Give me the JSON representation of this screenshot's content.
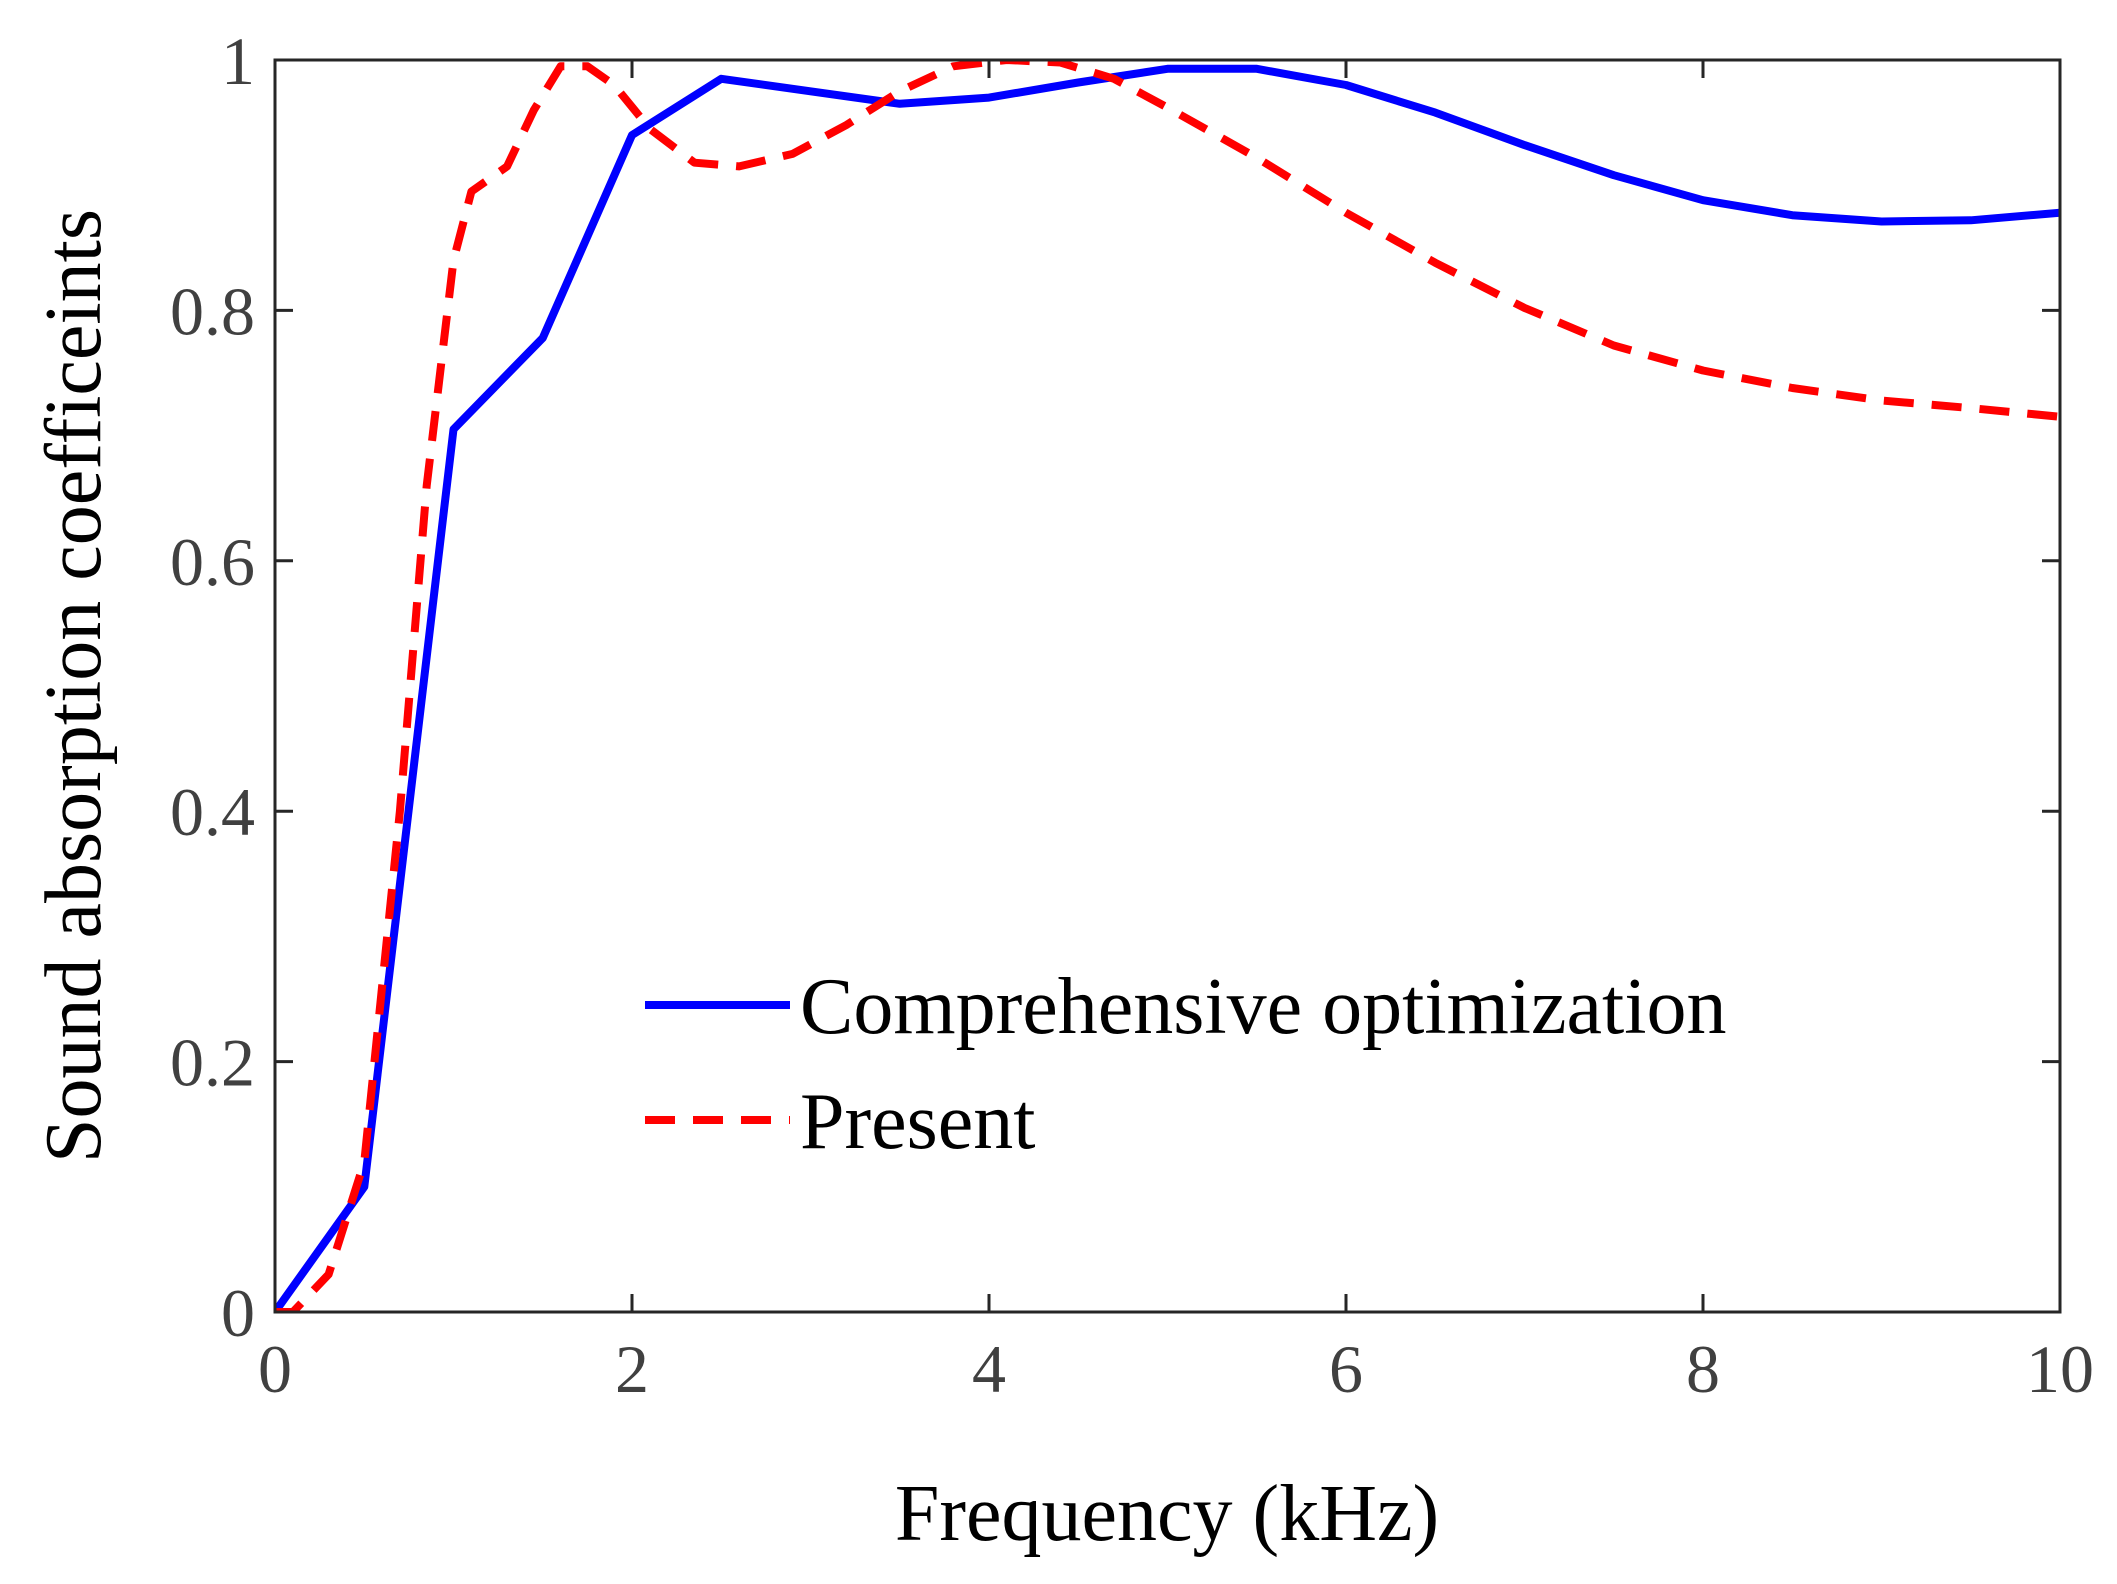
{
  "chart_data": {
    "type": "line",
    "title": "",
    "xlabel": "Frequency (kHz)",
    "ylabel": "Sound absorption coefficeints",
    "xlim": [
      0,
      10
    ],
    "ylim": [
      0,
      1
    ],
    "xticks": [
      0,
      2,
      4,
      6,
      8,
      10
    ],
    "xtick_labels": [
      "0",
      "2",
      "4",
      "6",
      "8",
      "10"
    ],
    "yticks": [
      0,
      0.2,
      0.4,
      0.6,
      0.8,
      1
    ],
    "ytick_labels": [
      "0",
      "0.2",
      "0.4",
      "0.6",
      "0.8",
      "1"
    ],
    "grid": false,
    "legend_position": "lower-right",
    "series": [
      {
        "name": "Comprehensive optimization",
        "color": "#0000ff",
        "style": "solid",
        "x": [
          0,
          0.5,
          1.0,
          1.5,
          2.0,
          2.5,
          3.0,
          3.5,
          4.0,
          4.5,
          5.0,
          5.5,
          6.0,
          6.5,
          7.0,
          7.5,
          8.0,
          8.5,
          9.0,
          9.5,
          10.0
        ],
        "y": [
          0,
          0.1,
          0.705,
          0.778,
          0.94,
          0.985,
          0.975,
          0.965,
          0.97,
          0.982,
          0.993,
          0.993,
          0.98,
          0.958,
          0.932,
          0.908,
          0.888,
          0.876,
          0.871,
          0.872,
          0.878
        ]
      },
      {
        "name": "Present",
        "color": "#ff0000",
        "style": "dashed",
        "x": [
          0,
          0.1,
          0.3,
          0.5,
          0.7,
          0.85,
          1.0,
          1.1,
          1.3,
          1.45,
          1.6,
          1.75,
          1.9,
          2.1,
          2.35,
          2.6,
          2.9,
          3.2,
          3.5,
          3.8,
          4.1,
          4.4,
          4.7,
          5.0,
          5.5,
          6.0,
          6.5,
          7.0,
          7.5,
          8.0,
          8.5,
          9.0,
          9.5,
          10.0
        ],
        "y": [
          0,
          0.0,
          0.03,
          0.12,
          0.4,
          0.66,
          0.84,
          0.895,
          0.915,
          0.96,
          0.995,
          0.995,
          0.98,
          0.945,
          0.918,
          0.915,
          0.925,
          0.948,
          0.975,
          0.995,
          1.0,
          0.998,
          0.985,
          0.962,
          0.922,
          0.878,
          0.838,
          0.802,
          0.772,
          0.752,
          0.738,
          0.728,
          0.722,
          0.715
        ]
      }
    ]
  }
}
